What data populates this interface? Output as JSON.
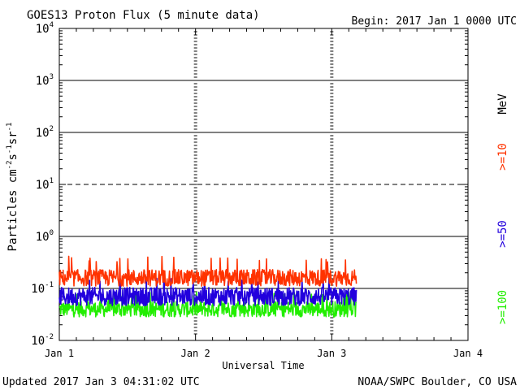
{
  "header": {
    "title": "GOES13 Proton Flux (5 minute data)",
    "begin": "Begin: 2017 Jan 1 0000 UTC"
  },
  "footer": {
    "updated": "Updated 2017 Jan  3 04:31:02 UTC",
    "source": "NOAA/SWPC Boulder, CO USA"
  },
  "colors": {
    "ge10": "#ff3300",
    "ge50": "#2200dd",
    "ge100": "#22ee00",
    "axis": "#000000"
  },
  "chart_data": {
    "type": "line",
    "title": "GOES13 Proton Flux (5 minute data)",
    "xlabel": "Universal Time",
    "ylabel": "Particles cm-2s-1sr-1",
    "ylabel_parts": {
      "base": "Particles cm",
      "e1": "-2",
      "mid": "s",
      "e2": "-1",
      "mid2": "sr",
      "e3": "-1"
    },
    "unit_label": "MeV",
    "yscale": "log",
    "ylim": [
      0.01,
      10000
    ],
    "xlim": [
      0,
      3
    ],
    "y_ticks": [
      {
        "value": 0.01,
        "base": "10",
        "exp": "-2"
      },
      {
        "value": 0.1,
        "base": "10",
        "exp": "-1"
      },
      {
        "value": 1,
        "base": "10",
        "exp": "0"
      },
      {
        "value": 10,
        "base": "10",
        "exp": "1"
      },
      {
        "value": 100,
        "base": "10",
        "exp": "2"
      },
      {
        "value": 1000,
        "base": "10",
        "exp": "3"
      },
      {
        "value": 10000,
        "base": "10",
        "exp": "4"
      }
    ],
    "x_ticks": [
      {
        "value": 0,
        "label": "Jan 1"
      },
      {
        "value": 1,
        "label": "Jan 2"
      },
      {
        "value": 2,
        "label": "Jan 3"
      },
      {
        "value": 3,
        "label": "Jan 4"
      }
    ],
    "grid": {
      "solid_levels": [
        0.1,
        1,
        100,
        1000
      ],
      "dashed_levels": [
        10
      ]
    },
    "series": [
      {
        "name": ">=10",
        "color": "#ff3300",
        "x_range": [
          0,
          2.18
        ],
        "base": 0.16,
        "spread": 0.32,
        "spike_max": 0.42
      },
      {
        "name": ">=50",
        "color": "#2200dd",
        "x_range": [
          0,
          2.18
        ],
        "base": 0.07,
        "spread": 0.35,
        "spike_max": 0.17
      },
      {
        "name": ">=100",
        "color": "#22ee00",
        "x_range": [
          0,
          2.18
        ],
        "base": 0.04,
        "spread": 0.3,
        "spike_max": 0.085
      }
    ]
  }
}
